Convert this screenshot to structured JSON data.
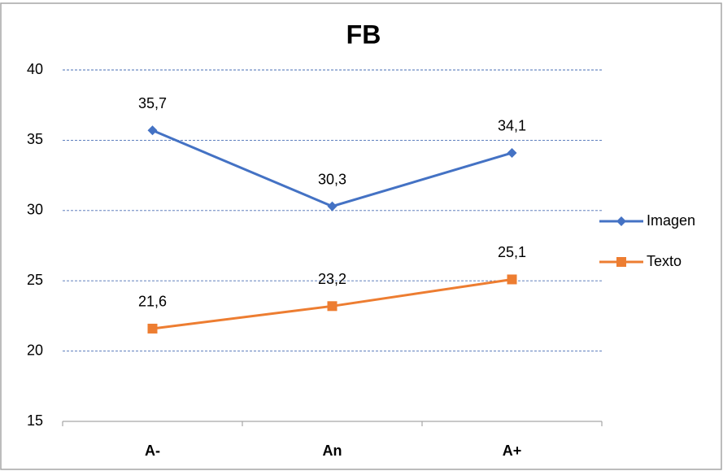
{
  "chart_data": {
    "type": "line",
    "title": "FB",
    "categories": [
      "A-",
      "An",
      "A+"
    ],
    "series": [
      {
        "name": "Imagen",
        "color": "#4472c4",
        "marker": "diamond",
        "values": [
          35.7,
          30.3,
          34.1
        ],
        "value_labels": [
          "35,7",
          "30,3",
          "34,1"
        ]
      },
      {
        "name": "Texto",
        "color": "#ed7d31",
        "marker": "square",
        "values": [
          21.6,
          23.2,
          25.1
        ],
        "value_labels": [
          "21,6",
          "23,2",
          "25,1"
        ]
      }
    ],
    "ylim": [
      15,
      40
    ],
    "yticks": [
      15,
      20,
      25,
      30,
      35,
      40
    ],
    "grid": true,
    "legend": "right"
  }
}
